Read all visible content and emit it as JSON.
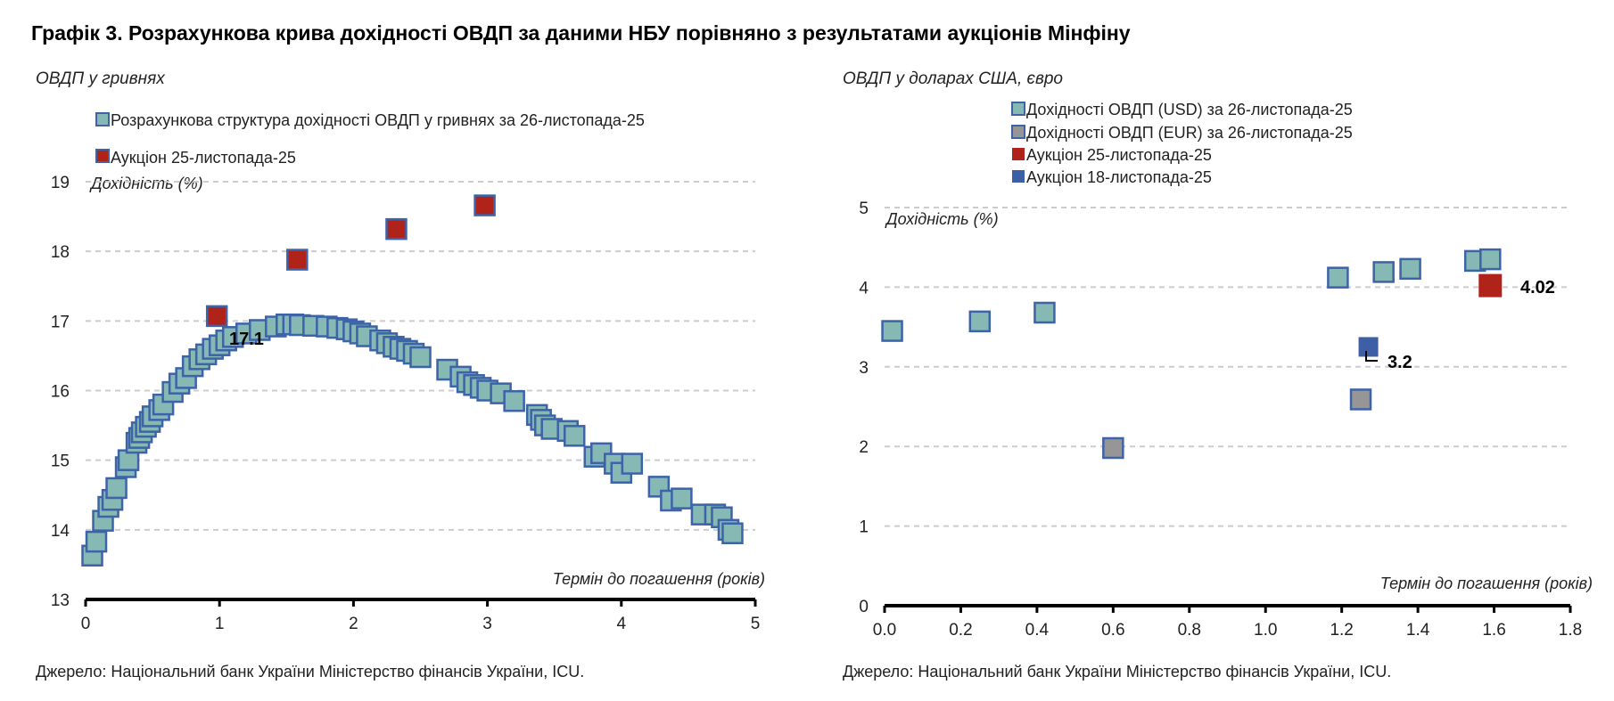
{
  "title": "Графік 3. Розрахункова крива дохідності ОВДП за даними НБУ порівняно з результатами аукціонів Мінфіну",
  "colors": {
    "curve_fill": "#86b8b4",
    "marker_border": "#3d63a8",
    "auction_25": "#b0231a",
    "auction_18": "#3d5fa6",
    "eur_fill": "#969696",
    "grid": "#cccccc"
  },
  "chart_data": [
    {
      "type": "scatter",
      "subtitle": "ОВДП у гривнях",
      "ylabel": "Дохідність (%)",
      "xlabel": "Термін до погашення (років)",
      "xlim": [
        0,
        5
      ],
      "ylim": [
        13,
        19
      ],
      "xticks": [
        "0",
        "1",
        "2",
        "3",
        "4",
        "5"
      ],
      "yticks": [
        "13",
        "14",
        "15",
        "16",
        "17",
        "18",
        "19"
      ],
      "grid": true,
      "legend_position": "top-left",
      "series": [
        {
          "name": "Розрахункова структура дохідності ОВДП у гривнях за 26-листопада-25",
          "style": "curve",
          "points": [
            [
              0.05,
              13.63
            ],
            [
              0.08,
              13.83
            ],
            [
              0.13,
              14.13
            ],
            [
              0.17,
              14.33
            ],
            [
              0.2,
              14.43
            ],
            [
              0.23,
              14.6
            ],
            [
              0.3,
              14.9
            ],
            [
              0.32,
              15.0
            ],
            [
              0.38,
              15.25
            ],
            [
              0.4,
              15.32
            ],
            [
              0.42,
              15.4
            ],
            [
              0.45,
              15.48
            ],
            [
              0.48,
              15.55
            ],
            [
              0.5,
              15.63
            ],
            [
              0.55,
              15.72
            ],
            [
              0.58,
              15.8
            ],
            [
              0.65,
              15.98
            ],
            [
              0.7,
              16.1
            ],
            [
              0.75,
              16.18
            ],
            [
              0.8,
              16.35
            ],
            [
              0.85,
              16.45
            ],
            [
              0.9,
              16.52
            ],
            [
              0.95,
              16.6
            ],
            [
              1.0,
              16.65
            ],
            [
              1.05,
              16.72
            ],
            [
              1.1,
              16.77
            ],
            [
              1.2,
              16.82
            ],
            [
              1.3,
              16.87
            ],
            [
              1.42,
              16.92
            ],
            [
              1.5,
              16.95
            ],
            [
              1.55,
              16.95
            ],
            [
              1.6,
              16.94
            ],
            [
              1.7,
              16.93
            ],
            [
              1.8,
              16.92
            ],
            [
              1.88,
              16.9
            ],
            [
              1.95,
              16.88
            ],
            [
              2.0,
              16.85
            ],
            [
              2.05,
              16.82
            ],
            [
              2.1,
              16.78
            ],
            [
              2.2,
              16.72
            ],
            [
              2.25,
              16.68
            ],
            [
              2.3,
              16.63
            ],
            [
              2.35,
              16.6
            ],
            [
              2.4,
              16.57
            ],
            [
              2.45,
              16.53
            ],
            [
              2.5,
              16.48
            ],
            [
              2.7,
              16.3
            ],
            [
              2.8,
              16.2
            ],
            [
              2.85,
              16.12
            ],
            [
              2.9,
              16.08
            ],
            [
              2.95,
              16.04
            ],
            [
              3.0,
              16.0
            ],
            [
              3.1,
              15.96
            ],
            [
              3.2,
              15.85
            ],
            [
              3.37,
              15.65
            ],
            [
              3.4,
              15.58
            ],
            [
              3.43,
              15.5
            ],
            [
              3.48,
              15.45
            ],
            [
              3.6,
              15.42
            ],
            [
              3.65,
              15.35
            ],
            [
              3.8,
              15.05
            ],
            [
              3.85,
              15.1
            ],
            [
              3.95,
              14.95
            ],
            [
              4.0,
              14.82
            ],
            [
              4.08,
              14.95
            ],
            [
              4.28,
              14.62
            ],
            [
              4.37,
              14.42
            ],
            [
              4.45,
              14.45
            ],
            [
              4.6,
              14.22
            ],
            [
              4.7,
              14.22
            ],
            [
              4.75,
              14.18
            ],
            [
              4.8,
              14.0
            ],
            [
              4.83,
              13.95
            ]
          ]
        },
        {
          "name": "Аукціон 25-листопада-25",
          "style": "auction25",
          "points": [
            [
              0.98,
              17.07
            ],
            [
              1.58,
              17.88
            ],
            [
              2.32,
              18.32
            ],
            [
              2.98,
              18.66
            ]
          ]
        }
      ],
      "annotations": [
        {
          "text": "17.1"
        }
      ]
    },
    {
      "type": "scatter",
      "subtitle": "ОВДП у доларах США, євро",
      "ylabel": "Дохідність (%)",
      "xlabel": "Термін до погашення (років)",
      "xlim": [
        0,
        1.8
      ],
      "ylim": [
        0,
        5
      ],
      "xticks": [
        "0.0",
        "0.2",
        "0.4",
        "0.6",
        "0.8",
        "1.0",
        "1.2",
        "1.4",
        "1.6",
        "1.8"
      ],
      "yticks": [
        "0",
        "1",
        "2",
        "3",
        "4",
        "5"
      ],
      "grid": true,
      "legend_position": "top-center",
      "series": [
        {
          "name": "Дохідності ОВДП (USD) за 26-листопада-25",
          "style": "curve",
          "points": [
            [
              0.02,
              3.45
            ],
            [
              0.25,
              3.57
            ],
            [
              0.42,
              3.68
            ],
            [
              1.19,
              4.12
            ],
            [
              1.31,
              4.19
            ],
            [
              1.38,
              4.23
            ],
            [
              1.55,
              4.33
            ],
            [
              1.59,
              4.35
            ]
          ]
        },
        {
          "name": "Дохідності ОВДП (EUR) за 26-листопада-25",
          "style": "eur",
          "points": [
            [
              0.6,
              1.98
            ],
            [
              1.25,
              2.59
            ]
          ]
        },
        {
          "name": "Аукціон 25-листопада-25",
          "style": "auction25",
          "points": [
            [
              1.59,
              4.02
            ]
          ]
        },
        {
          "name": "Аукціон 18-листопада-25",
          "style": "auction18",
          "points": [
            [
              1.27,
              3.25
            ]
          ]
        }
      ],
      "annotations": [
        {
          "text": "4.02"
        },
        {
          "text": "3.2"
        }
      ]
    }
  ],
  "source_left": "Джерело: Національний банк України Міністерство фінансів України, ICU.",
  "source_right": "Джерело: Національний банк України Міністерство фінансів України, ICU."
}
